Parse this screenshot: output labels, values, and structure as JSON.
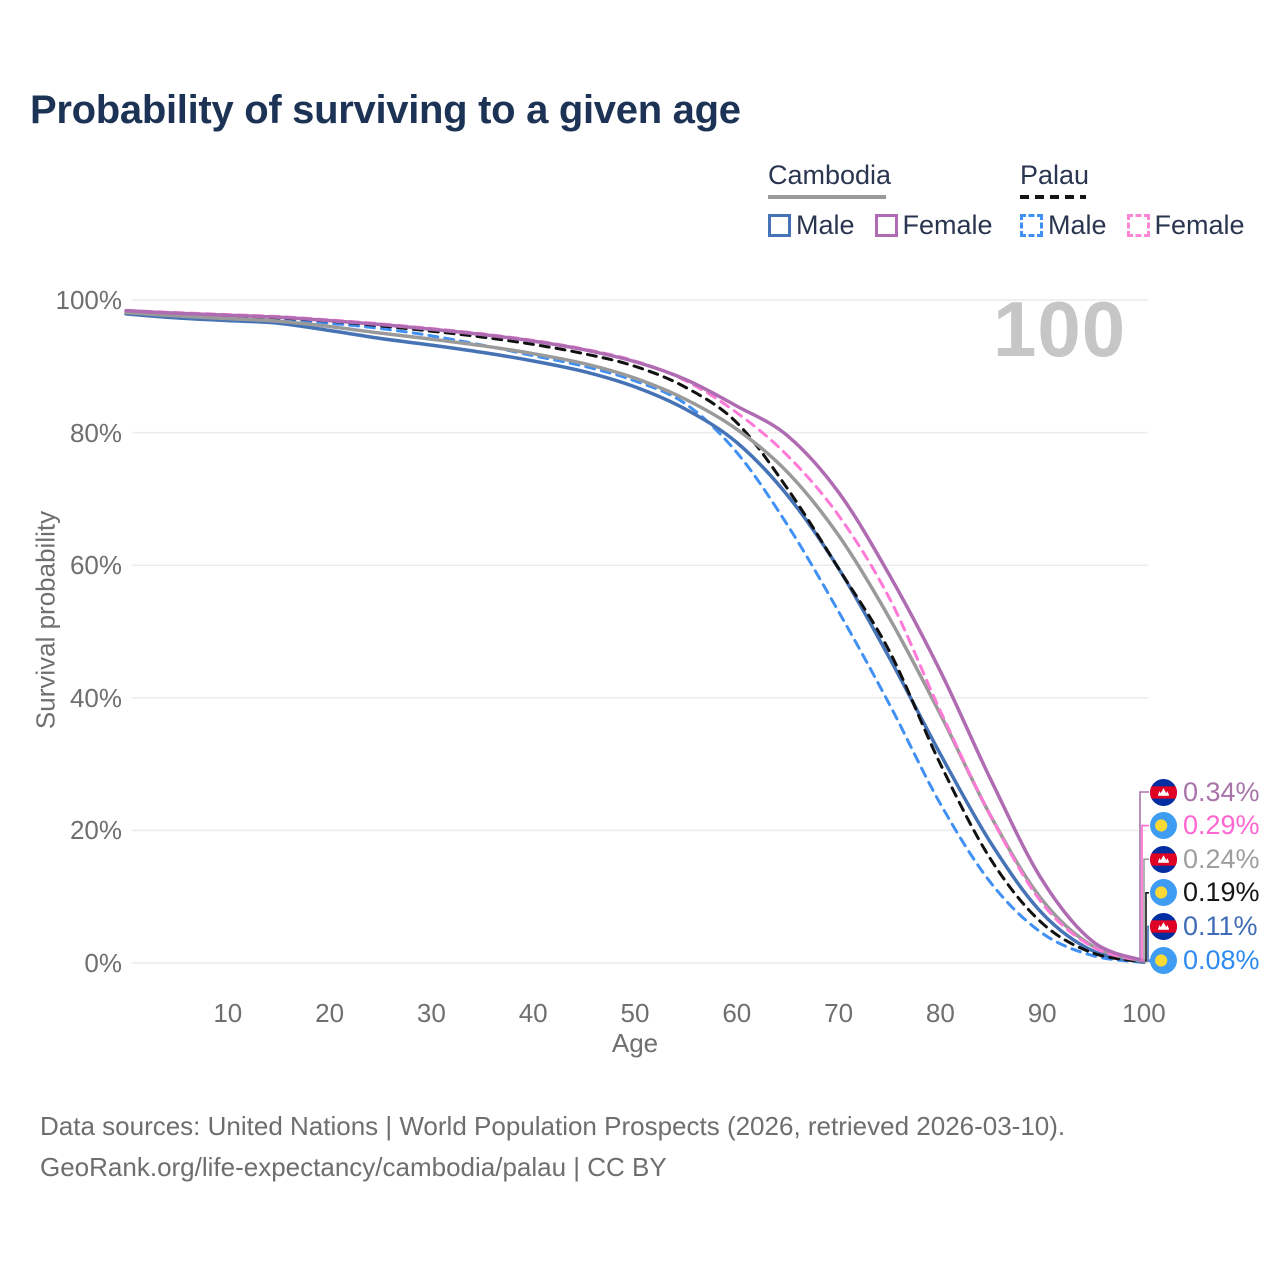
{
  "title": "Probability of surviving to a given age",
  "watermark_age": "100",
  "legend": {
    "groups": [
      {
        "label": "Cambodia",
        "line_style": "solid",
        "line_color": "#9a9a9a",
        "items": [
          {
            "label": "Male",
            "color": "#4673b5"
          },
          {
            "label": "Female",
            "color": "#b06cb2"
          }
        ]
      },
      {
        "label": "Palau",
        "line_style": "dashed",
        "line_color": "#151515",
        "items": [
          {
            "label": "Male",
            "color": "#4190f4"
          },
          {
            "label": "Female",
            "color": "#ff85d6"
          }
        ]
      }
    ]
  },
  "chart_data": {
    "type": "line",
    "title": "Probability of surviving to a given age",
    "xlabel": "Age",
    "ylabel": "Survival probability",
    "xlim": [
      0,
      100
    ],
    "ylim": [
      0,
      100
    ],
    "grid": "horizontal",
    "x_ticks": [
      10,
      20,
      30,
      40,
      50,
      60,
      70,
      80,
      90,
      100
    ],
    "y_tick_labels": [
      "100%",
      "80%",
      "60%",
      "40%",
      "20%",
      "0%"
    ],
    "y_tick_values": [
      100,
      80,
      60,
      40,
      20,
      0
    ],
    "x": [
      0,
      5,
      10,
      15,
      20,
      25,
      30,
      35,
      40,
      45,
      50,
      55,
      60,
      65,
      70,
      75,
      80,
      85,
      90,
      95,
      100
    ],
    "series": [
      {
        "name": "Palau Male",
        "country": "Palau",
        "sex": "Male",
        "color": "#4190f4",
        "dashed": true,
        "values": [
          98.1,
          97.7,
          97.4,
          97.1,
          96.5,
          95.7,
          94.6,
          93.2,
          91.6,
          90.0,
          87.8,
          84.3,
          77.0,
          66.0,
          53.0,
          39.0,
          24.0,
          12.0,
          4.5,
          1.1,
          0.08
        ]
      },
      {
        "name": "Cambodia Male",
        "country": "Cambodia",
        "sex": "Male",
        "color": "#4673b5",
        "dashed": false,
        "values": [
          97.9,
          97.3,
          96.9,
          96.5,
          95.4,
          94.2,
          93.2,
          92.1,
          90.8,
          89.2,
          86.9,
          83.5,
          78.5,
          70.5,
          59.5,
          46.0,
          31.5,
          18.0,
          7.5,
          1.8,
          0.11
        ]
      },
      {
        "name": "Palau",
        "country": "Palau",
        "sex": "Both sexes",
        "color": "#111111",
        "dashed": true,
        "values": [
          98.3,
          97.9,
          97.6,
          97.3,
          96.8,
          96.1,
          95.3,
          94.4,
          93.3,
          91.9,
          90.0,
          86.8,
          81.5,
          71.5,
          59.5,
          47.0,
          30.0,
          15.5,
          6.0,
          1.5,
          0.19
        ]
      },
      {
        "name": "Cambodia",
        "country": "Cambodia",
        "sex": "Both sexes",
        "color": "#9a9a9a",
        "dashed": false,
        "values": [
          98.1,
          97.6,
          97.2,
          96.8,
          96.0,
          95.0,
          94.1,
          93.1,
          91.9,
          90.4,
          88.2,
          85.0,
          80.5,
          74.0,
          64.5,
          52.0,
          37.5,
          22.0,
          9.5,
          2.5,
          0.24
        ]
      },
      {
        "name": "Palau Female",
        "country": "Palau",
        "sex": "Female",
        "color": "#ff7ad6",
        "dashed": true,
        "values": [
          98.4,
          98.1,
          97.8,
          97.5,
          97.0,
          96.4,
          95.7,
          94.9,
          93.9,
          92.6,
          90.8,
          87.8,
          83.0,
          76.5,
          67.5,
          55.0,
          38.0,
          22.0,
          9.0,
          2.4,
          0.29
        ]
      },
      {
        "name": "Cambodia Female",
        "country": "Cambodia",
        "sex": "Female",
        "color": "#b06cb2",
        "dashed": false,
        "values": [
          98.4,
          98.0,
          97.7,
          97.4,
          96.9,
          96.3,
          95.6,
          94.8,
          93.8,
          92.5,
          90.7,
          88.0,
          84.0,
          79.5,
          71.0,
          58.5,
          44.0,
          27.5,
          12.5,
          3.2,
          0.34
        ]
      }
    ],
    "end_labels": [
      {
        "value": "0.34%",
        "series": "Cambodia Female",
        "flag": "cambodia",
        "color": "#a874aa"
      },
      {
        "value": "0.29%",
        "series": "Palau Female",
        "flag": "palau",
        "color": "#ff66d1"
      },
      {
        "value": "0.24%",
        "series": "Cambodia",
        "flag": "cambodia",
        "color": "#9e9e9e"
      },
      {
        "value": "0.19%",
        "series": "Palau",
        "flag": "palau",
        "color": "#151515"
      },
      {
        "value": "0.11%",
        "series": "Cambodia Male",
        "flag": "cambodia",
        "color": "#3f6cb5"
      },
      {
        "value": "0.08%",
        "series": "Palau Male",
        "flag": "palau",
        "color": "#2f8bef"
      }
    ]
  },
  "flag_colors": {
    "cambodia_blue": "#032ea1",
    "cambodia_red": "#df0024",
    "palau_blue": "#3e9df3",
    "palau_yellow": "#fdd935"
  },
  "footer": {
    "line1": "Data sources: United Nations | World Population Prospects (2026, retrieved 2026-03-10).",
    "line2": "GeoRank.org/life-expectancy/cambodia/palau | CC BY"
  }
}
